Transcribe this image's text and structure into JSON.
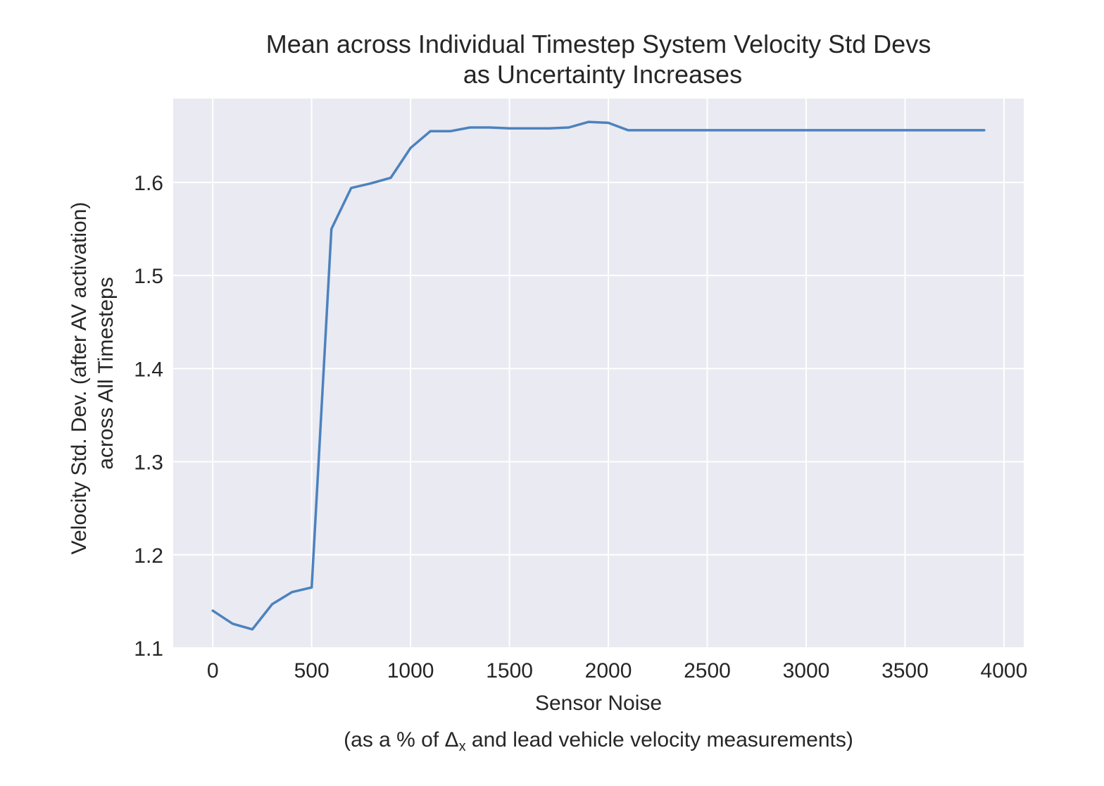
{
  "chart_data": {
    "type": "line",
    "title": "Mean across Individual Timestep System Velocity Std Devs",
    "subtitle": "as Uncertainty Increases",
    "xlabel": "Sensor Noise",
    "xlabel_sub": "(as a % of Δx and lead vehicle velocity measurements)",
    "ylabel": "Velocity Std. Dev. (after AV activation)",
    "ylabel_sub": "across All Timesteps",
    "xlim": [
      -200,
      4100
    ],
    "ylim": [
      1.1,
      1.69
    ],
    "x_ticks": [
      "0",
      "500",
      "1000",
      "1500",
      "2000",
      "2500",
      "3000",
      "3500",
      "4000"
    ],
    "y_ticks": [
      "1.1",
      "1.2",
      "1.3",
      "1.4",
      "1.5",
      "1.6"
    ],
    "grid": true,
    "background": "#eaeaf2",
    "series": [
      {
        "color": "#4c82be",
        "x": [
          0,
          100,
          200,
          300,
          400,
          500,
          600,
          700,
          800,
          900,
          1000,
          1100,
          1200,
          1300,
          1400,
          1500,
          1600,
          1700,
          1800,
          1900,
          2000,
          2100,
          2200,
          2300,
          2400,
          2500,
          2600,
          2700,
          2800,
          2900,
          3000,
          3100,
          3200,
          3300,
          3400,
          3500,
          3600,
          3700,
          3800,
          3900
        ],
        "y": [
          1.14,
          1.126,
          1.12,
          1.147,
          1.16,
          1.165,
          1.55,
          1.594,
          1.599,
          1.605,
          1.637,
          1.655,
          1.655,
          1.659,
          1.659,
          1.658,
          1.658,
          1.658,
          1.659,
          1.665,
          1.664,
          1.656,
          1.656,
          1.656,
          1.656,
          1.656,
          1.656,
          1.656,
          1.656,
          1.656,
          1.656,
          1.656,
          1.656,
          1.656,
          1.656,
          1.656,
          1.656,
          1.656,
          1.656,
          1.656
        ]
      }
    ]
  }
}
